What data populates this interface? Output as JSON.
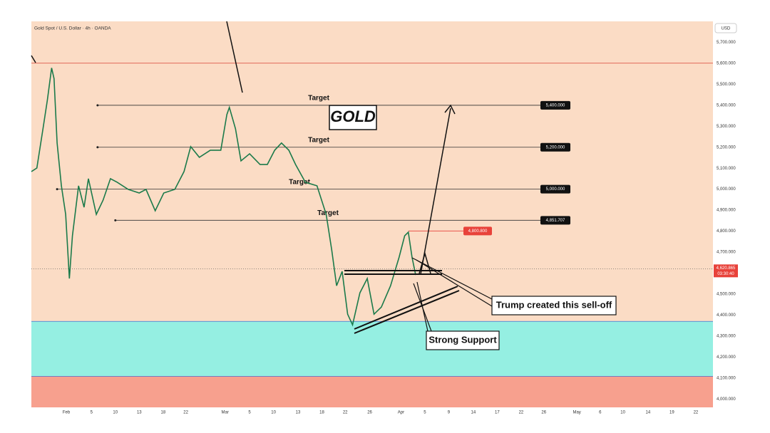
{
  "chart_data": {
    "type": "line",
    "title": "Gold Spot / U.S. Dollar · 4h · OANDA",
    "axis_unit": "USD",
    "color": "#1b7a4a",
    "x": [
      0,
      0.9,
      1.9,
      2.6,
      3.3,
      3.7,
      4.2,
      4.9,
      5.6,
      6.2,
      6.7,
      7.7,
      8.6,
      9.3,
      10.6,
      11.7,
      12.9,
      14.0,
      15.8,
      17.6,
      18.7,
      20.2,
      21.6,
      23.4,
      24.9,
      26.0,
      27.4,
      29.2,
      30.9,
      31.9,
      32.3,
      33.3,
      34.2,
      35.6,
      37.3,
      38.5,
      39.7,
      40.8,
      42.0,
      43.1,
      44.7,
      46.6,
      48.1,
      49.0,
      49.8,
      50.7,
      51.6,
      52.4,
      53.6,
      54.8,
      55.9,
      57.1,
      58.6,
      60.0,
      60.9,
      61.5,
      62.1,
      62.7
    ],
    "values": [
      5084,
      5101,
      5288,
      5424,
      5578,
      5527,
      5220,
      5016,
      4880,
      4574,
      4778,
      5016,
      4914,
      5050,
      4880,
      4948,
      5050,
      5033,
      4999,
      4982,
      4999,
      4897,
      4982,
      4999,
      5084,
      5203,
      5152,
      5186,
      5186,
      5356,
      5390,
      5288,
      5135,
      5169,
      5118,
      5118,
      5186,
      5220,
      5186,
      5118,
      5033,
      5016,
      4880,
      4710,
      4540,
      4608,
      4404,
      4353,
      4506,
      4574,
      4404,
      4438,
      4540,
      4676,
      4778,
      4795,
      4676,
      4591
    ],
    "xlim": [
      0,
      111.2
    ],
    "ylim": [
      3960,
      5800
    ],
    "xticks": [
      {
        "value": 5.7,
        "label": "Feb"
      },
      {
        "value": 9.8,
        "label": "5"
      },
      {
        "value": 13.7,
        "label": "10"
      },
      {
        "value": 17.6,
        "label": "13"
      },
      {
        "value": 21.5,
        "label": "18"
      },
      {
        "value": 25.2,
        "label": "22"
      },
      {
        "value": 31.6,
        "label": "Mar"
      },
      {
        "value": 35.6,
        "label": "5"
      },
      {
        "value": 39.5,
        "label": "10"
      },
      {
        "value": 43.5,
        "label": "13"
      },
      {
        "value": 47.4,
        "label": "18"
      },
      {
        "value": 51.2,
        "label": "22"
      },
      {
        "value": 55.2,
        "label": "26"
      },
      {
        "value": 60.3,
        "label": "Apr"
      },
      {
        "value": 64.2,
        "label": "5"
      },
      {
        "value": 68.1,
        "label": "9"
      },
      {
        "value": 72.1,
        "label": "14"
      },
      {
        "value": 76.0,
        "label": "17"
      },
      {
        "value": 79.9,
        "label": "22"
      },
      {
        "value": 83.6,
        "label": "26"
      },
      {
        "value": 89.0,
        "label": "May"
      },
      {
        "value": 92.8,
        "label": "6"
      },
      {
        "value": 96.5,
        "label": "10"
      },
      {
        "value": 100.6,
        "label": "14"
      },
      {
        "value": 104.5,
        "label": "19"
      },
      {
        "value": 108.4,
        "label": "22"
      }
    ],
    "yticks": [
      {
        "value": 4000,
        "label": "4,000.000"
      },
      {
        "value": 4100,
        "label": "4,100.000"
      },
      {
        "value": 4200,
        "label": "4,200.000"
      },
      {
        "value": 4300,
        "label": "4,300.000"
      },
      {
        "value": 4400,
        "label": "4,400.000"
      },
      {
        "value": 4500,
        "label": "4,500.000"
      },
      {
        "value": 4600,
        "label": "4,600.000"
      },
      {
        "value": 4700,
        "label": "4,700.000"
      },
      {
        "value": 4800,
        "label": "4,800.000"
      },
      {
        "value": 4900,
        "label": "4,900.000"
      },
      {
        "value": 5000,
        "label": "5,000.000"
      },
      {
        "value": 5100,
        "label": "5,100.000"
      },
      {
        "value": 5200,
        "label": "5,200.000"
      },
      {
        "value": 5300,
        "label": "5,300.000"
      },
      {
        "value": 5400,
        "label": "5,400.000"
      },
      {
        "value": 5500,
        "label": "5,500.000"
      },
      {
        "value": 5600,
        "label": "5,600.000"
      },
      {
        "value": 5700,
        "label": "5,700.000"
      }
    ],
    "zones": [
      {
        "from": 4108,
        "to": 4370,
        "color": "#95efe2"
      },
      {
        "from": 3960,
        "to": 4108,
        "color": "#f7a08e"
      }
    ],
    "resistance_line": {
      "value": 5601,
      "color": "#e06a5a"
    },
    "targets": [
      {
        "value": 5400,
        "label": "5,400.000",
        "text": "Target",
        "x_start": 10.8
      },
      {
        "value": 5200,
        "label": "5,200.000",
        "text": "Target",
        "x_start": 10.8
      },
      {
        "value": 5000,
        "label": "5,000.000",
        "text": "Target",
        "x_start": 4.2
      },
      {
        "value": 4851.707,
        "label": "4,851.707",
        "text": "Target",
        "x_start": 13.7
      }
    ],
    "high_marker": {
      "value": 4800.8,
      "label": "4,800.800",
      "x_start": 61.5,
      "color": "#e8423a"
    },
    "current_price": {
      "value": 4620.865,
      "label": "4,620.865",
      "timer": "03:30:40",
      "color": "#e8423a"
    },
    "annotations": [
      "GOLD",
      "Trump created this sell-off",
      "Strong Support"
    ]
  }
}
